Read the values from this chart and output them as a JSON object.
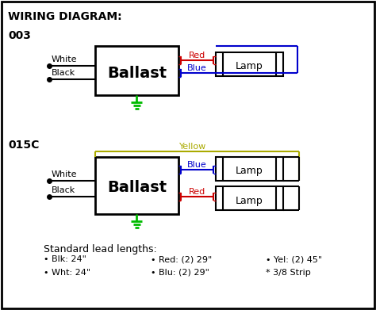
{
  "bg_color": "#ffffff",
  "border_color": "#000000",
  "title": "WIRING DIAGRAM:",
  "label_003": "003",
  "label_015c": "015C",
  "ballast_label": "Ballast",
  "lamp_label": "Lamp",
  "white_label": "White",
  "black_label": "Black",
  "red_label": "Red",
  "blue_label": "Blue",
  "yellow_label": "Yellow",
  "ground_color": "#00bb00",
  "red_color": "#cc0000",
  "blue_color": "#0000cc",
  "yellow_color": "#aaaa00",
  "black_color": "#000000",
  "footer_title": "Standard lead lengths:",
  "footer_items": [
    [
      "• Blk: 24\"",
      "• Red: (2) 29\"",
      "• Yel: (2) 45\""
    ],
    [
      "• Wht: 24\"",
      "• Blu: (2) 29\"",
      "* 3/8 Strip"
    ]
  ]
}
